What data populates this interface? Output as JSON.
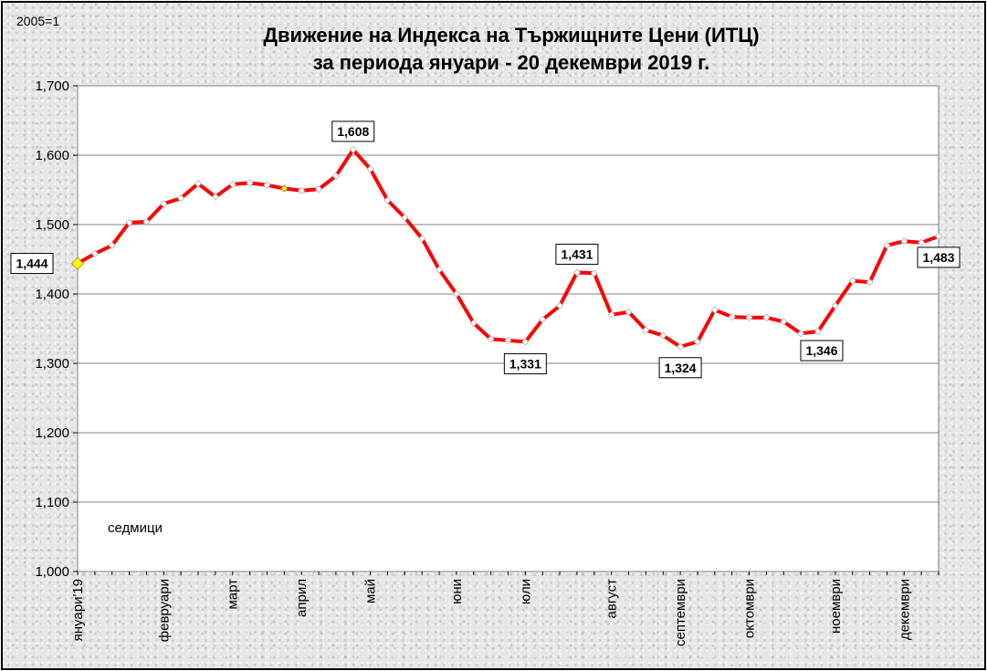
{
  "chart_data": {
    "type": "line",
    "title": "Движение на Индекса на Тържищните Цени (ИТЦ)",
    "subtitle": "за периода януари - 20 декември 2019 г.",
    "base_label": "2005=1",
    "xlabel": "седмици",
    "ylim": [
      1.0,
      1.7
    ],
    "y_ticks": [
      "1,000",
      "1,100",
      "1,200",
      "1,300",
      "1,400",
      "1,500",
      "1,600",
      "1,700"
    ],
    "month_labels": [
      {
        "label": "януари'19",
        "week": 1
      },
      {
        "label": "февруари",
        "week": 6
      },
      {
        "label": "март",
        "week": 10
      },
      {
        "label": "април",
        "week": 14
      },
      {
        "label": "май",
        "week": 18
      },
      {
        "label": "юни",
        "week": 23
      },
      {
        "label": "юли",
        "week": 27
      },
      {
        "label": "август",
        "week": 32
      },
      {
        "label": "септември",
        "week": 36
      },
      {
        "label": "октомври",
        "week": 40
      },
      {
        "label": "ноември",
        "week": 45
      },
      {
        "label": "декември",
        "week": 49
      }
    ],
    "series": [
      {
        "color": "#ff0000",
        "values": [
          1.444,
          1.458,
          1.47,
          1.503,
          1.504,
          1.53,
          1.538,
          1.559,
          1.54,
          1.558,
          1.56,
          1.557,
          1.552,
          1.549,
          1.551,
          1.57,
          1.608,
          1.58,
          1.535,
          1.51,
          1.48,
          1.435,
          1.4,
          1.358,
          1.335,
          1.333,
          1.331,
          1.363,
          1.383,
          1.431,
          1.43,
          1.37,
          1.374,
          1.348,
          1.34,
          1.324,
          1.331,
          1.377,
          1.367,
          1.366,
          1.366,
          1.36,
          1.343,
          1.346,
          1.383,
          1.419,
          1.417,
          1.47,
          1.476,
          1.474,
          1.483
        ]
      }
    ],
    "data_labels": [
      {
        "week": 1,
        "text": "1,444"
      },
      {
        "week": 17,
        "text": "1,608"
      },
      {
        "week": 27,
        "text": "1,331"
      },
      {
        "week": 30,
        "text": "1,431"
      },
      {
        "week": 36,
        "text": "1,324"
      },
      {
        "week": 44,
        "text": "1,346"
      },
      {
        "week": 51,
        "text": "1,483"
      }
    ],
    "highlight_points": [
      {
        "week": 1,
        "color": "#ffff00"
      },
      {
        "week": 13,
        "color": "#ffff00"
      }
    ],
    "grid": true,
    "legend": "none"
  }
}
